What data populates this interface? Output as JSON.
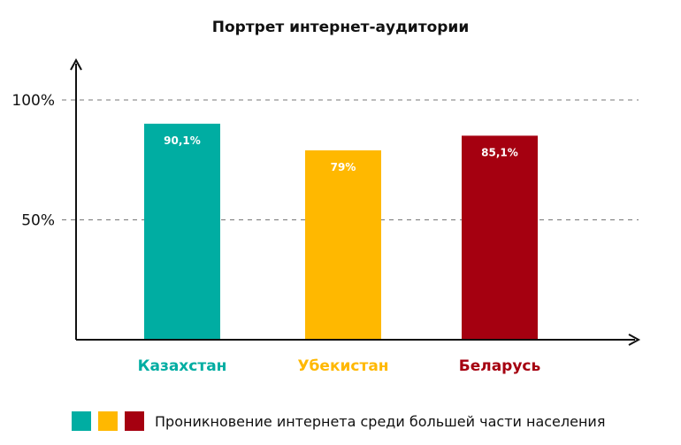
{
  "chart_data": {
    "type": "bar",
    "title": "Портрет интернет-аудитории",
    "categories": [
      "Казахстан",
      "Убекистан",
      "Беларусь"
    ],
    "series": [
      {
        "name": "Проникновение интернета среди большей части населения",
        "values": [
          90.1,
          79,
          85.1
        ]
      }
    ],
    "value_labels": [
      "90,1%",
      "79%",
      "85,1%"
    ],
    "bar_colors": [
      "#00ADA2",
      "#FFB800",
      "#A50010"
    ],
    "yticks": [
      {
        "value": 50,
        "label": "50%"
      },
      {
        "value": 100,
        "label": "100%"
      }
    ],
    "ylim": [
      0,
      100
    ],
    "grid": "dashed at ticks",
    "legend": {
      "placement": "bottom-left",
      "swatches": [
        "#00ADA2",
        "#FFB800",
        "#A50010"
      ],
      "label": "Проникновение интернета среди большей части населения"
    },
    "xlabel": "",
    "ylabel": ""
  }
}
